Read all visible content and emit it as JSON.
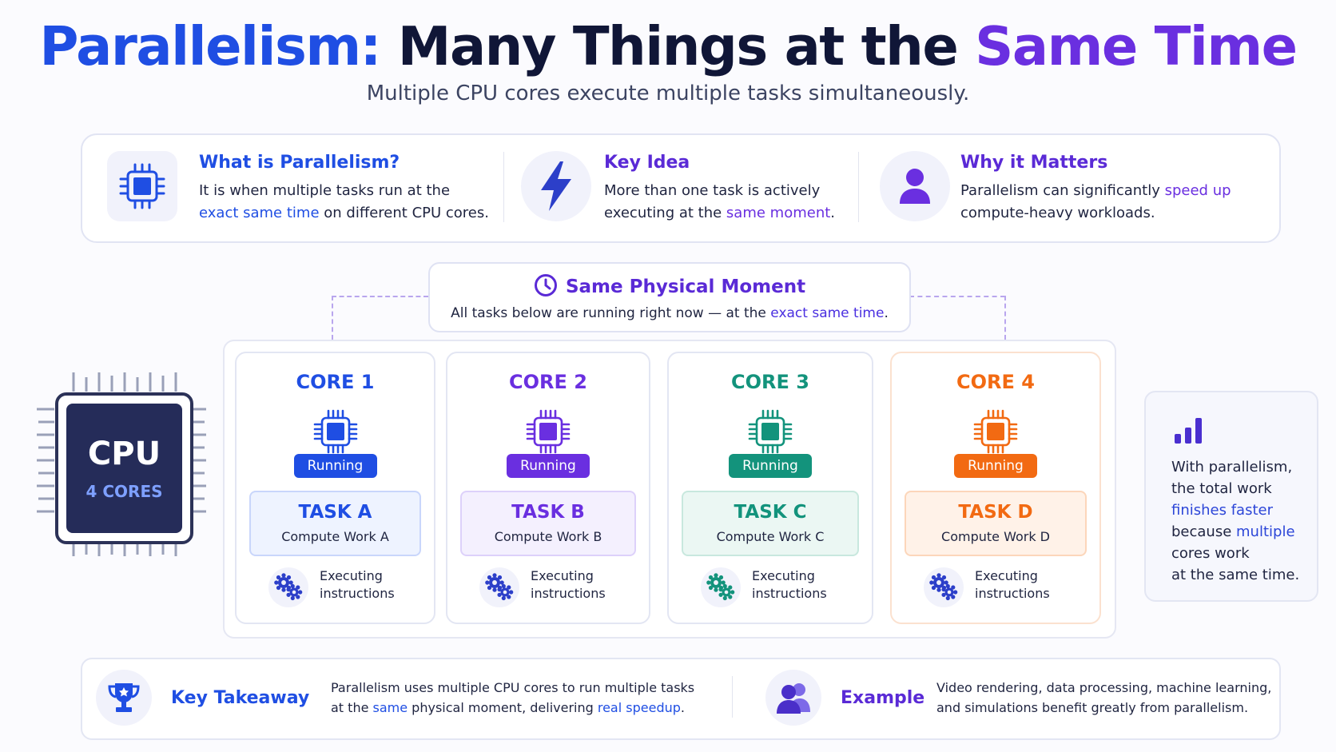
{
  "title": {
    "part1": "Parallelism:",
    "part2": "Many Things at the",
    "part3": "Same Time"
  },
  "subtitle": "Multiple CPU cores execute multiple tasks simultaneously.",
  "info": [
    {
      "icon": "chip-icon",
      "title": "What is Parallelism?",
      "line1": "It is when multiple tasks run at the",
      "line2_highlight": "exact same time",
      "line2_rest": " on different CPU cores."
    },
    {
      "icon": "lightning-icon",
      "title": "Key Idea",
      "line1": "More than one task is actively",
      "line2_pre": "executing at the ",
      "line2_highlight": "same moment",
      "line2_post": "."
    },
    {
      "icon": "person-icon",
      "title": "Why it Matters",
      "line1_pre": "Parallelism can significantly ",
      "line1_highlight": "speed up",
      "line2": "compute-heavy workloads."
    }
  ],
  "moment": {
    "title": "Same Physical Moment",
    "text_pre": "All tasks below are running right now — at the ",
    "text_highlight": "exact same time",
    "text_post": "."
  },
  "cpu": {
    "label": "CPU",
    "cores": "4 CORES"
  },
  "cores": [
    {
      "title": "CORE 1",
      "status": "Running",
      "task": "TASK A",
      "work": "Compute Work A",
      "exec1": "Executing",
      "exec2": "instructions",
      "color": "#1f4ee3",
      "tint": "#eef3ff",
      "border": "#c9d6fb"
    },
    {
      "title": "CORE 2",
      "status": "Running",
      "task": "TASK B",
      "work": "Compute Work B",
      "exec1": "Executing",
      "exec2": "instructions",
      "color": "#6a2fe0",
      "tint": "#f4f0fe",
      "border": "#ddd1fa"
    },
    {
      "title": "CORE 3",
      "status": "Running",
      "task": "TASK C",
      "work": "Compute Work C",
      "exec1": "Executing",
      "exec2": "instructions",
      "color": "#13937c",
      "tint": "#ebf7f3",
      "border": "#c8e8de"
    },
    {
      "title": "CORE 4",
      "status": "Running",
      "task": "TASK D",
      "work": "Compute Work D",
      "exec1": "Executing",
      "exec2": "instructions",
      "color": "#f26a12",
      "tint": "#fff2e8",
      "border": "#fcd6ba"
    }
  ],
  "side_note": {
    "icon": "bar-chart-icon",
    "line1": "With parallelism,",
    "line2": "the total work",
    "line3_highlight": "finishes faster",
    "line4_pre": "because ",
    "line4_highlight": "multiple",
    "line5": "cores work",
    "line6": "at the same time."
  },
  "takeaway": {
    "icon": "trophy-icon",
    "label": "Key Takeaway",
    "line1": "Parallelism uses multiple CPU cores to run multiple tasks",
    "line2_pre": "at the ",
    "line2_hl1": "same",
    "line2_mid": " physical moment, delivering ",
    "line2_hl2": "real speedup",
    "line2_post": "."
  },
  "example": {
    "icon": "users-icon",
    "label": "Example",
    "line1": "Video rendering, data processing, machine learning,",
    "line2": "and simulations benefit greatly from parallelism."
  }
}
